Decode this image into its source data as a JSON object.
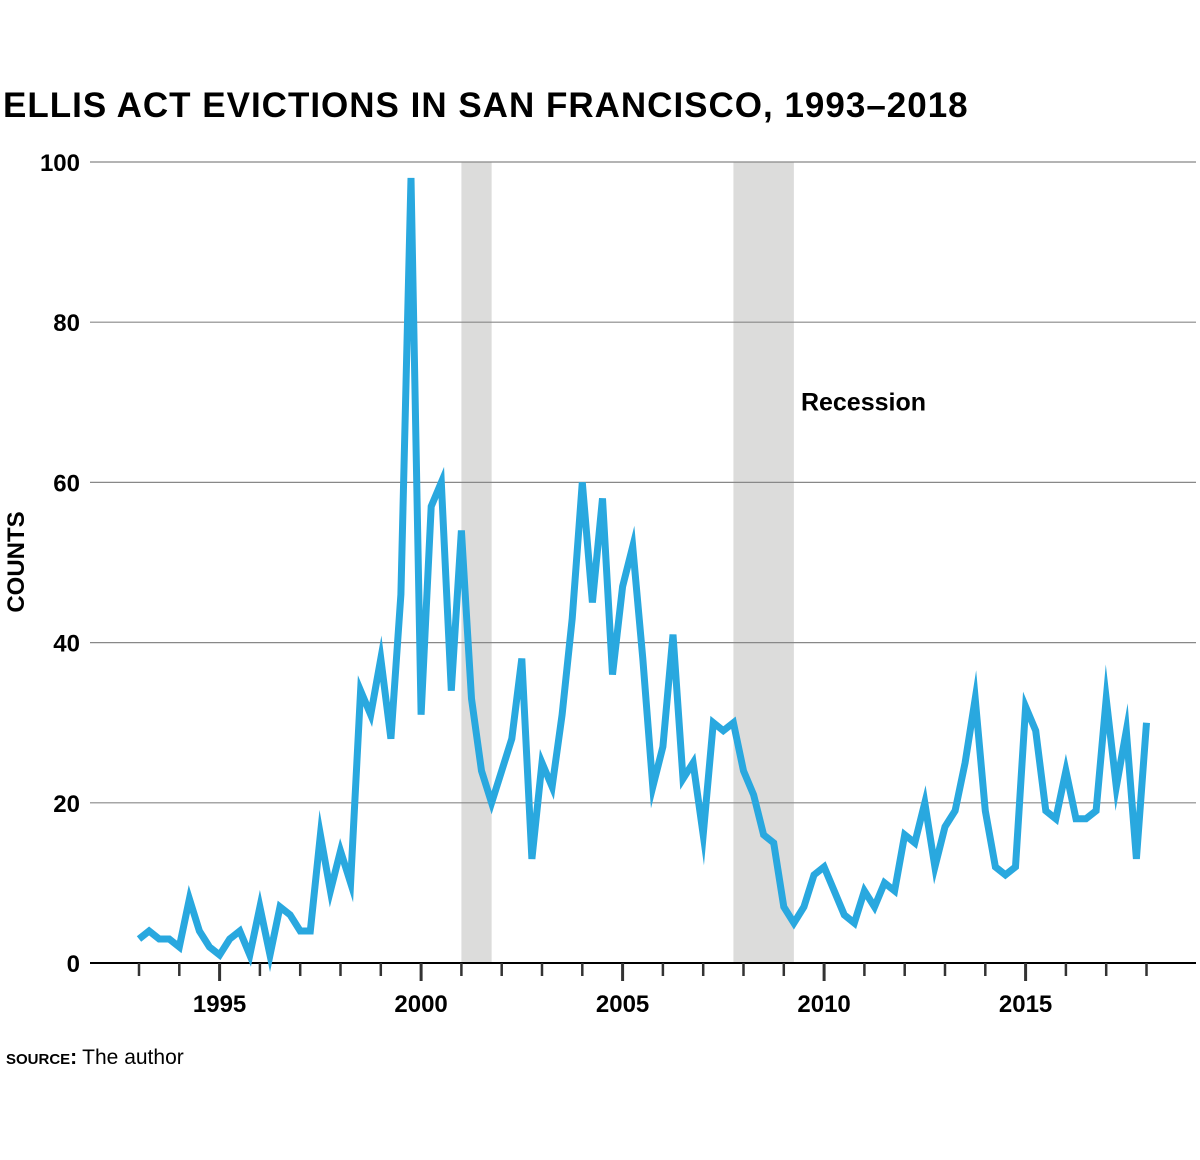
{
  "chart_data": {
    "type": "line",
    "title": "ELLIS ACT EVICTIONS IN SAN FRANCISCO, 1993–2018",
    "ylabel": "COUNTS",
    "xlabel": "",
    "xlim": [
      1992.2,
      2018.5
    ],
    "ylim": [
      0,
      100
    ],
    "yticks": [
      0,
      20,
      40,
      60,
      80,
      100
    ],
    "xtick_labels": [
      "1995",
      "2000",
      "2005",
      "2010",
      "2015"
    ],
    "xtick_values": [
      1995,
      2000,
      2005,
      2010,
      2015
    ],
    "grid": "horizontal",
    "colors": {
      "line": "#29a8df",
      "recession": "#dcdcdb",
      "grid": "#888888"
    },
    "recessions": [
      {
        "start": 2001.0,
        "end": 2001.75
      },
      {
        "start": 2007.75,
        "end": 2009.25
      }
    ],
    "annotation": {
      "text": "Recession",
      "anchor_year": 2009.5,
      "anchor_value": 70
    },
    "series": [
      {
        "x": [
          1993.0,
          1993.25,
          1993.5,
          1993.75,
          1994.0,
          1994.25,
          1994.5,
          1994.75,
          1995.0,
          1995.25,
          1995.5,
          1995.75,
          1996.0,
          1996.25,
          1996.5,
          1996.75,
          1997.0,
          1997.25,
          1997.5,
          1997.75,
          1998.0,
          1998.25,
          1998.5,
          1998.75,
          1999.0,
          1999.25,
          1999.5,
          1999.75,
          2000.0,
          2000.25,
          2000.5,
          2000.75,
          2001.0,
          2001.25,
          2001.5,
          2001.75,
          2002.0,
          2002.25,
          2002.5,
          2002.75,
          2003.0,
          2003.25,
          2003.5,
          2003.75,
          2004.0,
          2004.25,
          2004.5,
          2004.75,
          2005.0,
          2005.25,
          2005.5,
          2005.75,
          2006.0,
          2006.25,
          2006.5,
          2006.75,
          2007.0,
          2007.25,
          2007.5,
          2007.75,
          2008.0,
          2008.25,
          2008.5,
          2008.75,
          2009.0,
          2009.25,
          2009.5,
          2009.75,
          2010.0,
          2010.25,
          2010.5,
          2010.75,
          2011.0,
          2011.25,
          2011.5,
          2011.75,
          2012.0,
          2012.25,
          2012.5,
          2012.75,
          2013.0,
          2013.25,
          2013.5,
          2013.75,
          2014.0,
          2014.25,
          2014.5,
          2014.75,
          2015.0,
          2015.25,
          2015.5,
          2015.75,
          2016.0,
          2016.25,
          2016.5,
          2016.75,
          2017.0,
          2017.25,
          2017.5,
          2017.75,
          2018.0
        ],
        "values": [
          3,
          4,
          3,
          3,
          2,
          8,
          4,
          2,
          1,
          3,
          4,
          1,
          7,
          1,
          7,
          6,
          4,
          4,
          16,
          9,
          14,
          10,
          34,
          31,
          38,
          28,
          46,
          98,
          31,
          57,
          60,
          34,
          54,
          33,
          24,
          20,
          24,
          28,
          38,
          13,
          25,
          22,
          31,
          43,
          60,
          45,
          58,
          36,
          47,
          52,
          38,
          22,
          27,
          41,
          23,
          25,
          16,
          30,
          29,
          30,
          24,
          21,
          16,
          15,
          7,
          5,
          7,
          11,
          12,
          9,
          6,
          5,
          9,
          7,
          10,
          9,
          16,
          15,
          20,
          12,
          17,
          19,
          25,
          33,
          19,
          12,
          11,
          12,
          32,
          29,
          19,
          18,
          24,
          18,
          18,
          19,
          33,
          22,
          29,
          13,
          30
        ]
      }
    ]
  },
  "source": {
    "label": "source:",
    "text": "The author"
  }
}
